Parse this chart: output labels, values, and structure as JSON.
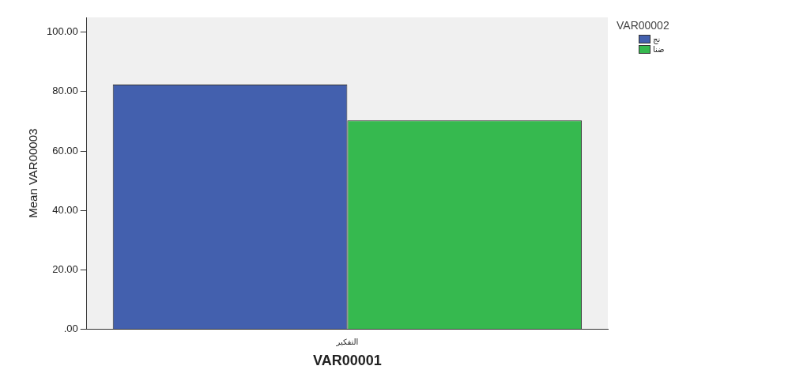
{
  "chart_data": {
    "type": "bar",
    "xlabel": "VAR00001",
    "ylabel": "Mean VAR00003",
    "legend_title": "VAR00002",
    "categories": [
      "التفكير"
    ],
    "series": [
      {
        "name": "نج",
        "color": "#4360ae",
        "values": [
          82.4
        ]
      },
      {
        "name": "ضنا",
        "color": "#36b94f",
        "values": [
          70.3
        ]
      }
    ],
    "ylim": [
      0,
      105
    ],
    "yticks": [
      {
        "value": 0,
        "label": ".00"
      },
      {
        "value": 20,
        "label": "20.00"
      },
      {
        "value": 40,
        "label": "40.00"
      },
      {
        "value": 60,
        "label": "60.00"
      },
      {
        "value": 80,
        "label": "80.00"
      },
      {
        "value": 100,
        "label": "100.00"
      }
    ],
    "grid": false,
    "legend": "top right"
  }
}
